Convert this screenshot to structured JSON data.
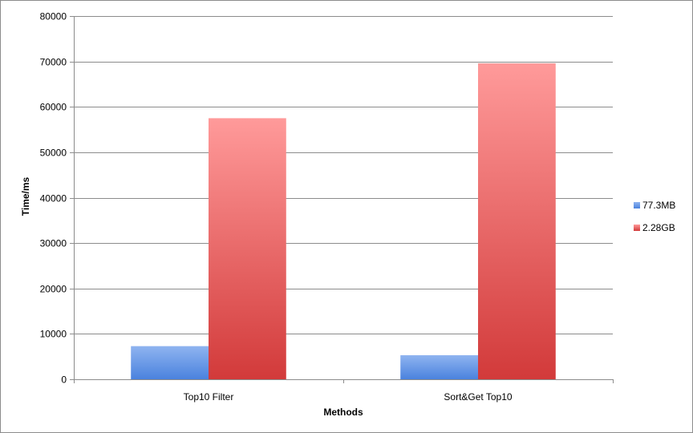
{
  "chart_data": {
    "type": "bar",
    "title": "",
    "xlabel": "Methods",
    "ylabel": "Time/ms",
    "categories": [
      "Top10 Filter",
      "Sort&Get Top10"
    ],
    "series": [
      {
        "name": "77.3MB",
        "values": [
          7300,
          5300
        ],
        "color_top": "#8fb4f0",
        "color_bottom": "#4a82de"
      },
      {
        "name": "2.28GB",
        "values": [
          57500,
          69600
        ],
        "color_top": "#ff9a9a",
        "color_bottom": "#d23a3a"
      }
    ],
    "ylim": [
      0,
      80000
    ],
    "yticks": [
      0,
      10000,
      20000,
      30000,
      40000,
      50000,
      60000,
      70000,
      80000
    ],
    "grid": true,
    "legend_position": "right"
  }
}
